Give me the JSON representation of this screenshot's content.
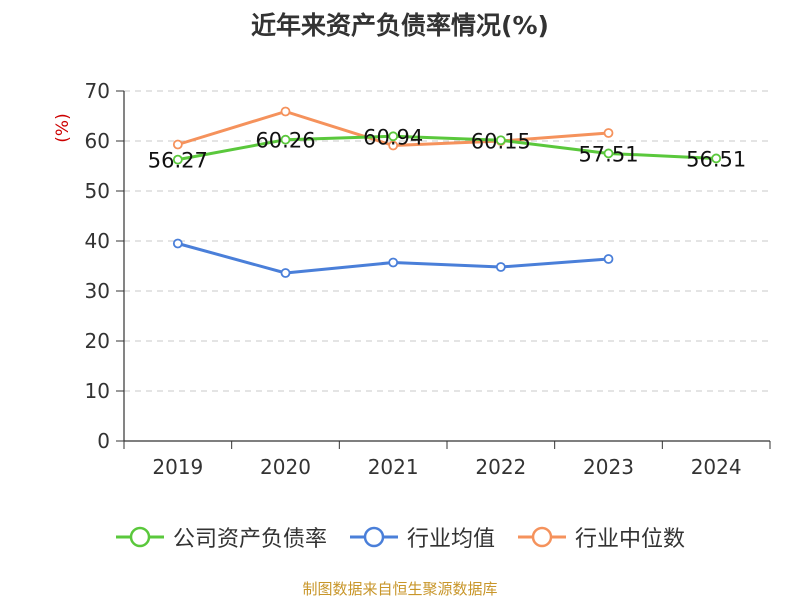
{
  "title": "近年来资产负债率情况(%)",
  "source": "制图数据来自恒生聚源数据库",
  "chart_data": {
    "type": "line",
    "categories": [
      "2019",
      "2020",
      "2021",
      "2022",
      "2023",
      "2024"
    ],
    "ylabel": "(%)",
    "ylim": [
      0,
      70
    ],
    "yticks": [
      0,
      10,
      20,
      30,
      40,
      50,
      60,
      70
    ],
    "grid": true,
    "legend_position": "bottom",
    "series": [
      {
        "name": "公司资产负债率",
        "color": "#5ac83c",
        "values": [
          56.27,
          60.26,
          60.94,
          60.15,
          57.51,
          56.51
        ],
        "labels": [
          "56.27",
          "60.26",
          "60.94",
          "60.15",
          "57.51",
          "56.51"
        ]
      },
      {
        "name": "行业均值",
        "color": "#4a7fd9",
        "values": [
          39.5,
          33.6,
          35.7,
          34.8,
          36.4,
          null
        ]
      },
      {
        "name": "行业中位数",
        "color": "#f5925c",
        "values": [
          59.3,
          65.9,
          59.1,
          60.0,
          61.6,
          null
        ]
      }
    ]
  }
}
